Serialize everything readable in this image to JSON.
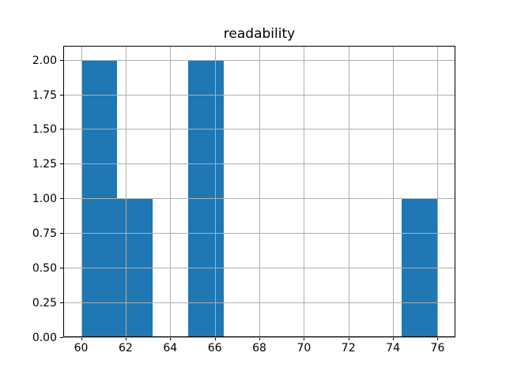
{
  "chart_data": {
    "type": "bar",
    "subtype": "histogram",
    "title": "readability",
    "xlabel": "",
    "ylabel": "",
    "bin_edges": [
      60.0,
      61.6,
      63.2,
      64.8,
      66.4,
      68.0,
      69.6,
      71.2,
      72.8,
      74.4,
      76.0
    ],
    "counts": [
      2,
      1,
      0,
      2,
      0,
      0,
      0,
      0,
      0,
      1
    ],
    "xlim": [
      59.2,
      76.8
    ],
    "ylim": [
      0,
      2.1
    ],
    "xticks": [
      60,
      62,
      64,
      66,
      68,
      70,
      72,
      74,
      76
    ],
    "xtick_labels": [
      "60",
      "62",
      "64",
      "66",
      "68",
      "70",
      "72",
      "74",
      "76"
    ],
    "yticks": [
      0,
      0.25,
      0.5,
      0.75,
      1.0,
      1.25,
      1.5,
      1.75,
      2.0
    ],
    "ytick_labels": [
      "0.00",
      "0.25",
      "0.50",
      "0.75",
      "1.00",
      "1.25",
      "1.50",
      "1.75",
      "2.00"
    ],
    "grid": true,
    "grid_over_bars": true,
    "legend": false,
    "bar_color": "#1f77b4",
    "grid_color": "#b0b0b0",
    "axis_color": "#000000",
    "text_color": "#000000",
    "background_color": "#ffffff"
  }
}
